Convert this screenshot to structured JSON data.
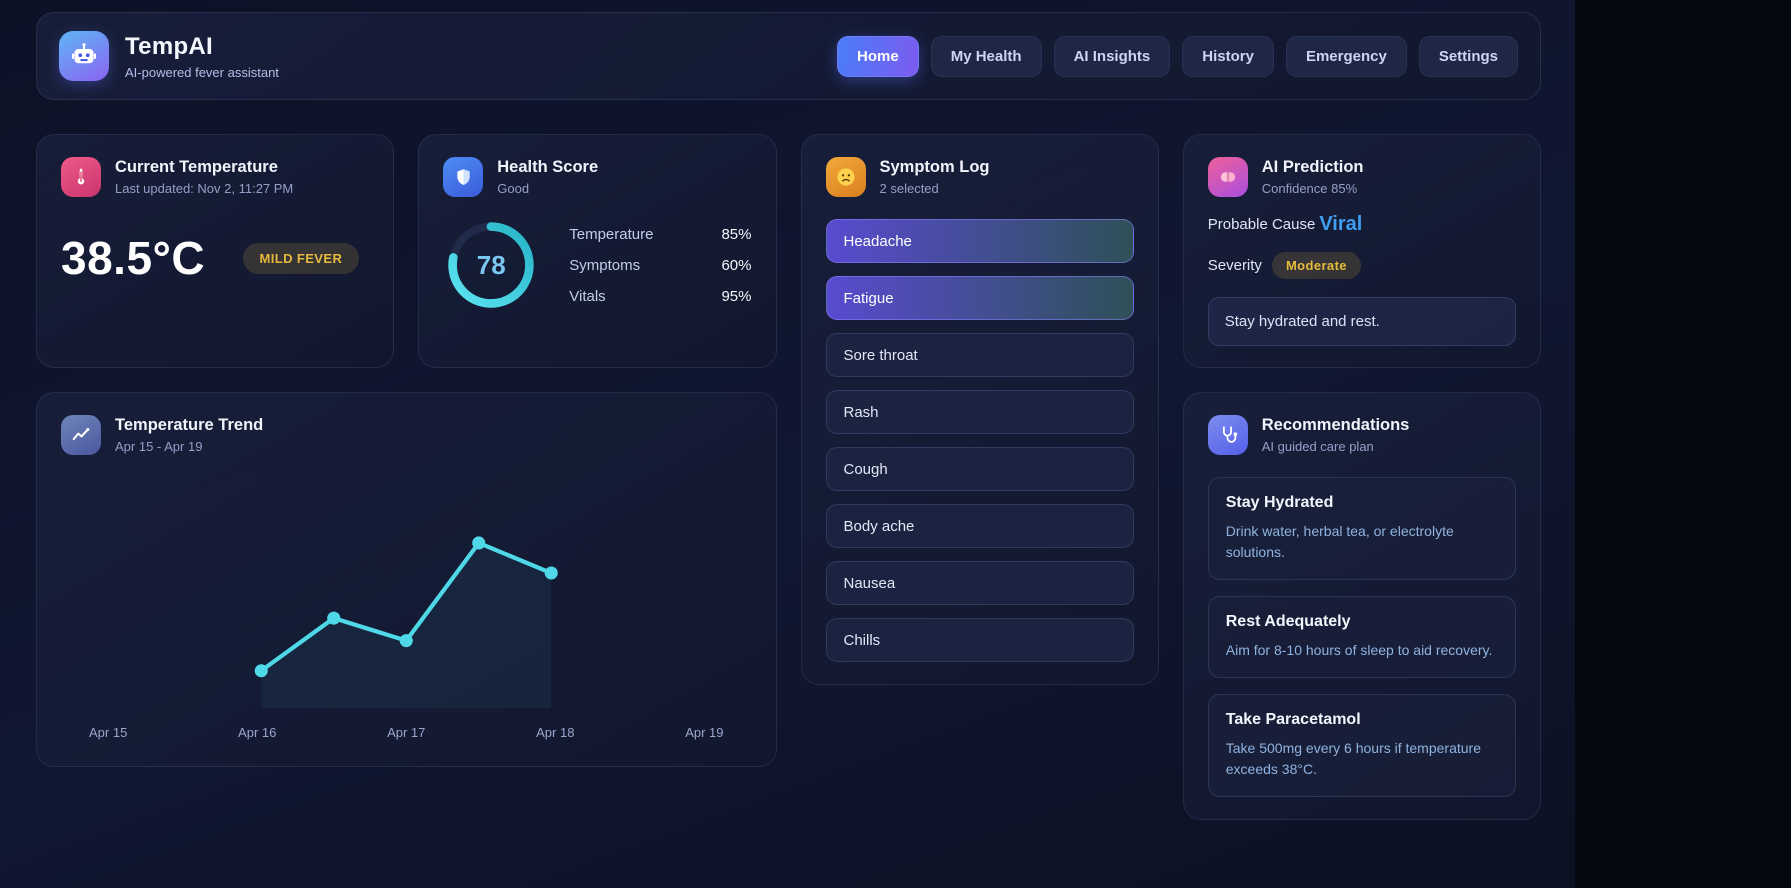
{
  "colors": {
    "accent_cyan": "#4fd9e8",
    "accent_yellow": "#e6ba3c",
    "accent_blue": "#3f9ef2",
    "nav_active_gradient": [
      "#4a7df8",
      "#7c5bf0"
    ],
    "selected_symptom_gradient": [
      "#584bd0",
      "#2e5058"
    ]
  },
  "header": {
    "app_name": "TempAI",
    "tagline": "AI-powered fever assistant",
    "logo_icon": "robot-icon",
    "nav": [
      {
        "label": "Home",
        "active": true
      },
      {
        "label": "My Health",
        "active": false
      },
      {
        "label": "AI Insights",
        "active": false
      },
      {
        "label": "History",
        "active": false
      },
      {
        "label": "Emergency",
        "active": false
      },
      {
        "label": "Settings",
        "active": false
      }
    ]
  },
  "current_temperature": {
    "icon": "thermometer-icon",
    "title": "Current Temperature",
    "subtitle": "Last updated: Nov 2, 11:27 PM",
    "value": "38.5°C",
    "badge": "MILD FEVER"
  },
  "health_score": {
    "icon": "shield-icon",
    "title": "Health Score",
    "subtitle": "Good",
    "score": 78,
    "metrics": [
      {
        "label": "Temperature",
        "value": "85%"
      },
      {
        "label": "Symptoms",
        "value": "60%"
      },
      {
        "label": "Vitals",
        "value": "95%"
      }
    ]
  },
  "temperature_trend": {
    "icon": "line-chart-icon",
    "title": "Temperature Trend",
    "subtitle": "Apr 15 - Apr 19"
  },
  "chart_data": {
    "type": "line",
    "title": "Temperature Trend",
    "x": [
      "Apr 15",
      "Apr 16",
      "Apr 17",
      "Apr 18",
      "Apr 19"
    ],
    "values": [
      37.2,
      37.9,
      37.6,
      38.9,
      38.5
    ],
    "unit": "°C",
    "xlabel": "",
    "ylabel": "",
    "grid": false,
    "legend": false,
    "line_color": "#4fd9e8"
  },
  "symptom_log": {
    "icon": "worried-face-icon",
    "title": "Symptom Log",
    "subtitle": "2 selected",
    "symptoms": [
      {
        "label": "Headache",
        "selected": true
      },
      {
        "label": "Fatigue",
        "selected": true
      },
      {
        "label": "Sore throat",
        "selected": false
      },
      {
        "label": "Rash",
        "selected": false
      },
      {
        "label": "Cough",
        "selected": false
      },
      {
        "label": "Body ache",
        "selected": false
      },
      {
        "label": "Nausea",
        "selected": false
      },
      {
        "label": "Chills",
        "selected": false
      }
    ]
  },
  "ai_prediction": {
    "icon": "brain-icon",
    "title": "AI Prediction",
    "subtitle": "Confidence 85%",
    "probable_cause_label": "Probable Cause",
    "probable_cause_value": "Viral",
    "severity_label": "Severity",
    "severity_value": "Moderate",
    "advice": "Stay hydrated and rest."
  },
  "recommendations": {
    "icon": "stethoscope-icon",
    "title": "Recommendations",
    "subtitle": "AI guided care plan",
    "items": [
      {
        "title": "Stay Hydrated",
        "desc": "Drink water, herbal tea, or electrolyte solutions."
      },
      {
        "title": "Rest Adequately",
        "desc": "Aim for 8-10 hours of sleep to aid recovery."
      },
      {
        "title": "Take Paracetamol",
        "desc": "Take 500mg every 6 hours if temperature exceeds 38°C."
      }
    ]
  }
}
